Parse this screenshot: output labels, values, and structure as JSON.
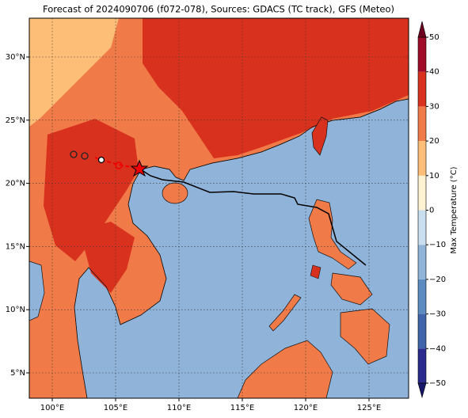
{
  "title": "Forecast of 2024090706 (f072-078), Sources: GDACS (TC track), GFS (Meteo)",
  "map": {
    "xticks": [
      {
        "value": 100,
        "label": "100°E"
      },
      {
        "value": 105,
        "label": "105°E"
      },
      {
        "value": 110,
        "label": "110°E"
      },
      {
        "value": 115,
        "label": "115°E"
      },
      {
        "value": 120,
        "label": "120°E"
      },
      {
        "value": 125,
        "label": "125°E"
      }
    ],
    "yticks": [
      {
        "value": 5,
        "label": "5°N"
      },
      {
        "value": 10,
        "label": "10°N"
      },
      {
        "value": 15,
        "label": "15°N"
      },
      {
        "value": 20,
        "label": "20°N"
      },
      {
        "value": 25,
        "label": "25°N"
      },
      {
        "value": 30,
        "label": "30°N"
      }
    ]
  },
  "colorbar": {
    "label": "Max Temperature (°C)",
    "ticks": [
      {
        "value": -50,
        "label": "−50"
      },
      {
        "value": -40,
        "label": "−40"
      },
      {
        "value": -30,
        "label": "−30"
      },
      {
        "value": -20,
        "label": "−20"
      },
      {
        "value": -10,
        "label": "−10"
      },
      0,
      10,
      20,
      30,
      40,
      50
    ],
    "colors": [
      "#2a2a8e",
      "#4064ac",
      "#5b8bc0",
      "#8fb4d8",
      "#c9dff0",
      "#fdf3d2",
      "#fdbf78",
      "#f07a48",
      "#d8321f",
      "#a00b2a"
    ],
    "under": "#16166a",
    "over": "#6e0020"
  }
}
